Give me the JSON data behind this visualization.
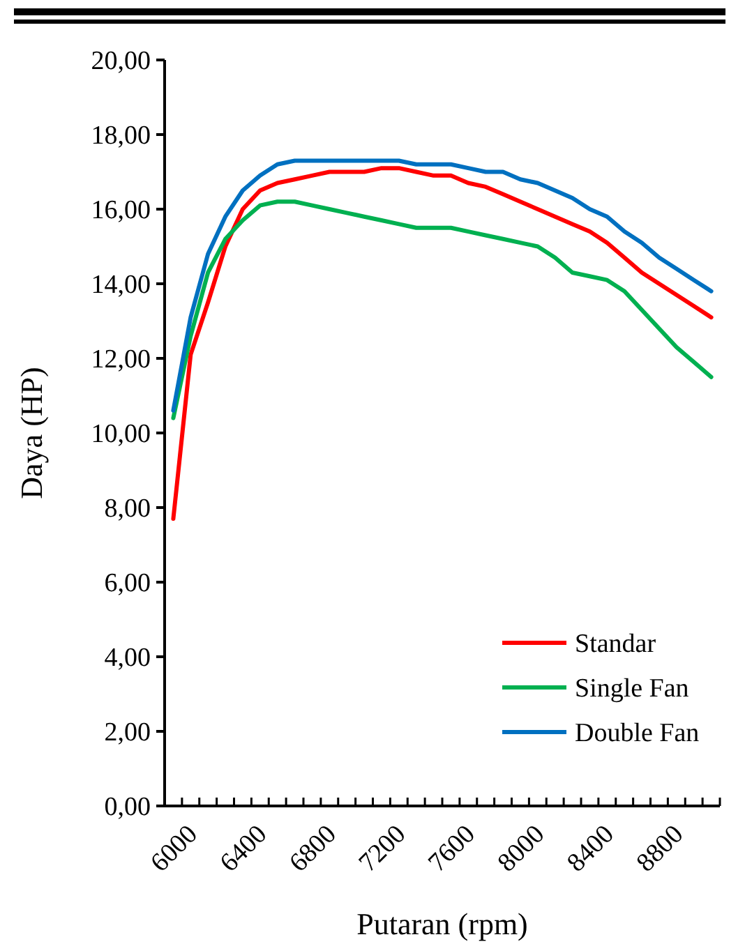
{
  "chart_data": {
    "type": "line",
    "xlabel": "Putaran (rpm)",
    "ylabel": "Daya (HP)",
    "categories": [
      "6000",
      null,
      null,
      null,
      "6400",
      null,
      null,
      null,
      "6800",
      null,
      null,
      null,
      "7200",
      null,
      null,
      null,
      "7600",
      null,
      null,
      null,
      "8000",
      null,
      null,
      null,
      "8400",
      null,
      null,
      null,
      "8800",
      null,
      null,
      null
    ],
    "ylim": [
      0,
      20
    ],
    "yticks": [
      {
        "value": 0,
        "label": "0,00"
      },
      {
        "value": 2,
        "label": "2,00"
      },
      {
        "value": 4,
        "label": "4,00"
      },
      {
        "value": 6,
        "label": "6,00"
      },
      {
        "value": 8,
        "label": "8,00"
      },
      {
        "value": 10,
        "label": "10,00"
      },
      {
        "value": 12,
        "label": "12,00"
      },
      {
        "value": 14,
        "label": "14,00"
      },
      {
        "value": 16,
        "label": "16,00"
      },
      {
        "value": 18,
        "label": "18,00"
      },
      {
        "value": 20,
        "label": "20,00"
      }
    ],
    "grid": false,
    "legend": "bottom right",
    "marker": "none",
    "line_style": "solid",
    "series": [
      {
        "name": "Standar",
        "color": "#ff0000",
        "values": [
          7.7,
          12.1,
          13.5,
          15.0,
          16.0,
          16.5,
          16.7,
          16.8,
          16.9,
          17.0,
          17.0,
          17.0,
          17.1,
          17.1,
          17.0,
          16.9,
          16.9,
          16.7,
          16.6,
          16.4,
          16.2,
          16.0,
          15.8,
          15.6,
          15.4,
          15.1,
          14.7,
          14.3,
          14.0,
          13.7,
          13.4,
          13.1
        ]
      },
      {
        "name": "Single Fan",
        "color": "#00b050",
        "values": [
          10.4,
          12.6,
          14.3,
          15.2,
          15.7,
          16.1,
          16.2,
          16.2,
          16.1,
          16.0,
          15.9,
          15.8,
          15.7,
          15.6,
          15.5,
          15.5,
          15.5,
          15.4,
          15.3,
          15.2,
          15.1,
          15.0,
          14.7,
          14.3,
          14.2,
          14.1,
          13.8,
          13.3,
          12.8,
          12.3,
          11.9,
          11.5
        ]
      },
      {
        "name": "Double Fan",
        "color": "#0070c0",
        "values": [
          10.6,
          13.1,
          14.8,
          15.8,
          16.5,
          16.9,
          17.2,
          17.3,
          17.3,
          17.3,
          17.3,
          17.3,
          17.3,
          17.3,
          17.2,
          17.2,
          17.2,
          17.1,
          17.0,
          17.0,
          16.8,
          16.7,
          16.5,
          16.3,
          16.0,
          15.8,
          15.4,
          15.1,
          14.7,
          14.4,
          14.1,
          13.8
        ]
      }
    ]
  }
}
